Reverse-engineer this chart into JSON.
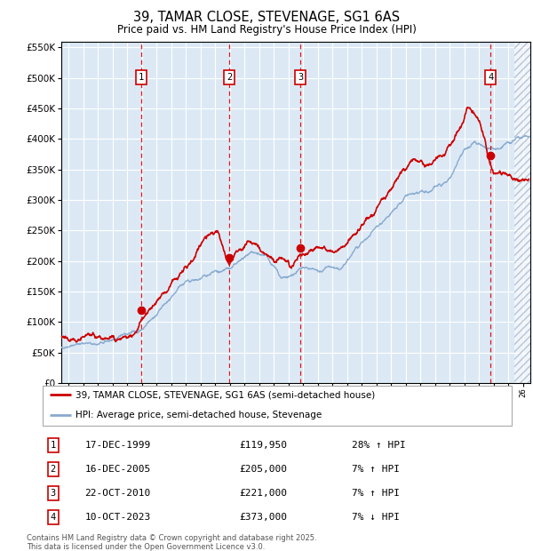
{
  "title": "39, TAMAR CLOSE, STEVENAGE, SG1 6AS",
  "subtitle": "Price paid vs. HM Land Registry's House Price Index (HPI)",
  "legend_line1": "39, TAMAR CLOSE, STEVENAGE, SG1 6AS (semi-detached house)",
  "legend_line2": "HPI: Average price, semi-detached house, Stevenage",
  "footer_line1": "Contains HM Land Registry data © Crown copyright and database right 2025.",
  "footer_line2": "This data is licensed under the Open Government Licence v3.0.",
  "transactions": [
    {
      "num": 1,
      "date": "17-DEC-1999",
      "price": 119950,
      "hpi_pct": "28% ↑ HPI",
      "year": 1999.96
    },
    {
      "num": 2,
      "date": "16-DEC-2005",
      "price": 205000,
      "hpi_pct": "7% ↑ HPI",
      "year": 2005.96
    },
    {
      "num": 3,
      "date": "22-OCT-2010",
      "price": 221000,
      "hpi_pct": "7% ↑ HPI",
      "year": 2010.81
    },
    {
      "num": 4,
      "date": "10-OCT-2023",
      "price": 373000,
      "hpi_pct": "7% ↓ HPI",
      "year": 2023.78
    }
  ],
  "red_line_color": "#cc0000",
  "blue_line_color": "#88aad0",
  "bg_color": "#dce9f5",
  "grid_color": "#ffffff",
  "dashed_line_color": "#dd0000",
  "marker_color": "#cc0000",
  "box_color": "#cc0000",
  "ylim": [
    0,
    560000
  ],
  "ytick_step": 50000,
  "xlim_start": 1994.5,
  "xlim_end": 2026.5,
  "hatch_start": 2025.4
}
